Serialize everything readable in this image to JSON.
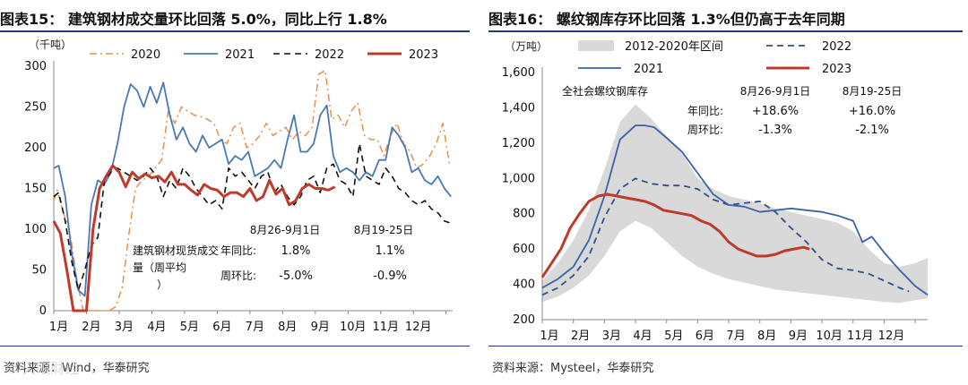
{
  "left": {
    "title": "图表15： 建筑钢材成交量环比回落 5.0%，同比上行 1.8%",
    "source": "资料来源：Wind，华泰研究",
    "chart_data": {
      "type": "line",
      "unit": "（千吨）",
      "ylim": [
        0,
        300
      ],
      "yticks": [
        0,
        50,
        100,
        150,
        200,
        250,
        300
      ],
      "xlim": [
        0,
        12.2
      ],
      "months": [
        "1月",
        "2月",
        "3月",
        "4月",
        "5月",
        "6月",
        "7月",
        "8月",
        "9月",
        "10月",
        "11月",
        "12月"
      ],
      "series": [
        {
          "name": "2020",
          "color": "#e8904a",
          "style": "dashdot",
          "width": 1.5,
          "x": [
            0,
            0.1,
            0.3,
            0.5,
            0.7,
            0.9,
            1.1,
            1.3,
            1.5,
            1.7,
            1.9,
            2.1,
            2.3,
            2.5,
            2.7,
            2.9,
            3.1,
            3.3,
            3.5,
            3.7,
            3.9,
            4.1,
            4.3,
            4.5,
            4.7,
            4.9,
            5.1,
            5.3,
            5.5,
            5.7,
            5.9,
            6.1,
            6.3,
            6.5,
            6.7,
            6.9,
            7.1,
            7.3,
            7.5,
            7.7,
            7.9,
            8.1,
            8.3,
            8.5,
            8.7,
            8.9,
            9.1,
            9.3,
            9.5,
            9.7,
            9.9,
            10.1,
            10.3,
            10.5,
            10.7,
            10.9,
            11.1,
            11.3,
            11.5,
            11.7,
            11.9,
            12.1
          ],
          "y": [
            135,
            148,
            120,
            95,
            40,
            0,
            0,
            0,
            0,
            0,
            5,
            30,
            95,
            150,
            160,
            165,
            175,
            185,
            245,
            230,
            250,
            245,
            240,
            238,
            235,
            230,
            210,
            205,
            225,
            230,
            200,
            205,
            215,
            230,
            215,
            220,
            225,
            210,
            220,
            215,
            225,
            290,
            295,
            235,
            240,
            225,
            245,
            255,
            215,
            210,
            210,
            190,
            215,
            230,
            205,
            195,
            175,
            180,
            190,
            205,
            230,
            180
          ]
        },
        {
          "name": "2021",
          "color": "#4a78b5",
          "style": "solid",
          "width": 1.8,
          "x": [
            0,
            0.15,
            0.35,
            0.55,
            0.75,
            0.95,
            1.15,
            1.35,
            1.55,
            1.75,
            1.95,
            2.15,
            2.35,
            2.55,
            2.75,
            2.95,
            3.15,
            3.35,
            3.55,
            3.75,
            3.95,
            4.15,
            4.35,
            4.55,
            4.75,
            4.95,
            5.15,
            5.35,
            5.55,
            5.75,
            5.95,
            6.15,
            6.35,
            6.55,
            6.75,
            6.95,
            7.15,
            7.35,
            7.55,
            7.75,
            7.95,
            8.15,
            8.35,
            8.55,
            8.75,
            8.95,
            9.15,
            9.35,
            9.55,
            9.75,
            9.95,
            10.15,
            10.35,
            10.55,
            10.75,
            10.95,
            11.15,
            11.35,
            11.55,
            11.75,
            11.95,
            12.15
          ],
          "y": [
            175,
            178,
            140,
            70,
            25,
            18,
            130,
            160,
            155,
            170,
            205,
            250,
            278,
            270,
            250,
            275,
            255,
            280,
            240,
            210,
            225,
            205,
            195,
            215,
            200,
            205,
            210,
            180,
            190,
            185,
            195,
            165,
            170,
            175,
            185,
            175,
            210,
            240,
            195,
            195,
            205,
            240,
            252,
            190,
            170,
            175,
            170,
            160,
            170,
            165,
            185,
            185,
            225,
            215,
            200,
            170,
            175,
            160,
            155,
            165,
            150,
            140
          ]
        },
        {
          "name": "2022",
          "color": "#111111",
          "style": "dashed",
          "width": 1.6,
          "x": [
            0,
            0.15,
            0.35,
            0.55,
            0.75,
            0.95,
            1.15,
            1.35,
            1.55,
            1.75,
            1.95,
            2.15,
            2.35,
            2.55,
            2.75,
            2.95,
            3.15,
            3.35,
            3.55,
            3.75,
            3.95,
            4.15,
            4.35,
            4.55,
            4.75,
            4.95,
            5.15,
            5.35,
            5.55,
            5.75,
            5.95,
            6.15,
            6.35,
            6.55,
            6.75,
            6.95,
            7.15,
            7.35,
            7.55,
            7.75,
            7.95,
            8.15,
            8.35,
            8.55,
            8.75,
            8.95,
            9.15,
            9.35,
            9.55,
            9.75,
            9.95,
            10.15,
            10.35,
            10.55,
            10.75,
            10.95,
            11.15,
            11.35,
            11.55,
            11.75,
            11.95,
            12.1
          ],
          "y": [
            140,
            145,
            110,
            60,
            25,
            50,
            80,
            90,
            160,
            170,
            175,
            170,
            165,
            160,
            165,
            175,
            165,
            140,
            160,
            150,
            175,
            165,
            150,
            140,
            130,
            135,
            125,
            175,
            165,
            170,
            160,
            150,
            165,
            170,
            145,
            155,
            140,
            130,
            140,
            160,
            165,
            145,
            175,
            180,
            160,
            155,
            140,
            205,
            165,
            160,
            155,
            175,
            165,
            150,
            145,
            135,
            130,
            135,
            125,
            120,
            110,
            108
          ]
        },
        {
          "name": "2023",
          "color": "#c0392b",
          "style": "solid",
          "width": 3.0,
          "x": [
            0,
            0.2,
            0.4,
            0.6,
            0.8,
            1.0,
            1.2,
            1.4,
            1.6,
            1.8,
            2.0,
            2.2,
            2.4,
            2.6,
            2.8,
            3.0,
            3.2,
            3.4,
            3.6,
            3.8,
            4.0,
            4.2,
            4.4,
            4.6,
            4.8,
            5.0,
            5.2,
            5.4,
            5.6,
            5.8,
            6.0,
            6.2,
            6.4,
            6.6,
            6.8,
            7.0,
            7.2,
            7.4,
            7.6,
            7.8,
            8.0,
            8.2,
            8.4,
            8.6
          ],
          "y": [
            110,
            95,
            50,
            0,
            0,
            0,
            100,
            150,
            165,
            178,
            170,
            152,
            170,
            162,
            168,
            163,
            165,
            158,
            170,
            155,
            155,
            148,
            142,
            155,
            150,
            148,
            140,
            145,
            145,
            140,
            150,
            135,
            140,
            160,
            143,
            150,
            130,
            135,
            150,
            155,
            150,
            150,
            148,
            152
          ]
        }
      ],
      "table": {
        "header": [
          "8月26-9月1日",
          "8月19-25日"
        ],
        "label": "建筑钢材现货成交量（周平均）",
        "rows": [
          {
            "name": "年同比:",
            "v1": "1.8%",
            "v2": "1.1%"
          },
          {
            "name": "周环比:",
            "v1": "-5.0%",
            "v2": "-0.9%"
          }
        ]
      }
    }
  },
  "right": {
    "title": "图表16： 螺纹钢库存环比回落 1.3%但仍高于去年同期",
    "source": "资料来源：Mysteel，华泰研究",
    "chart_data": {
      "type": "area",
      "unit": "（万吨）",
      "ylim": [
        200,
        1600
      ],
      "yticks": [
        200,
        400,
        600,
        800,
        1000,
        1200,
        1400,
        1600
      ],
      "yticklabels": [
        "200",
        "400",
        "600",
        "800",
        "1,000",
        "1,200",
        "1,400",
        "1,600"
      ],
      "xlim": [
        0,
        12.4
      ],
      "months": [
        "1月",
        "2月",
        "3月",
        "4月",
        "5月",
        "6月",
        "7月",
        "8月",
        "9月",
        "10月",
        "11月",
        "12月"
      ],
      "band": {
        "name": "2012-2020年区间",
        "color": "#d9d9d9",
        "x": [
          0,
          0.5,
          1.0,
          1.5,
          2.0,
          2.5,
          3.0,
          3.5,
          4.0,
          4.5,
          5.0,
          5.5,
          6.0,
          6.5,
          7.0,
          7.5,
          8.0,
          8.5,
          9.0,
          9.5,
          10.0,
          10.5,
          11.0,
          11.5,
          12.0,
          12.4
        ],
        "upper": [
          420,
          520,
          650,
          820,
          1050,
          1320,
          1420,
          1340,
          1240,
          1140,
          1000,
          940,
          900,
          880,
          860,
          830,
          810,
          790,
          770,
          750,
          700,
          600,
          520,
          500,
          520,
          550
        ],
        "lower": [
          300,
          330,
          380,
          450,
          560,
          700,
          760,
          720,
          640,
          560,
          500,
          460,
          430,
          410,
          390,
          370,
          360,
          350,
          340,
          330,
          320,
          310,
          300,
          295,
          310,
          320
        ]
      },
      "series": [
        {
          "name": "2022",
          "color": "#2f4f8a",
          "style": "dashed",
          "width": 1.8,
          "x": [
            0,
            0.5,
            1.0,
            1.5,
            2.0,
            2.5,
            3.0,
            3.5,
            4.0,
            4.5,
            5.0,
            5.5,
            6.0,
            6.5,
            7.0,
            7.5,
            8.0,
            8.5,
            9.0,
            9.5,
            10.0,
            10.5,
            11.0,
            11.5,
            11.8
          ],
          "y": [
            340,
            380,
            450,
            560,
            780,
            940,
            1000,
            970,
            960,
            960,
            940,
            880,
            850,
            860,
            870,
            810,
            720,
            640,
            540,
            490,
            480,
            460,
            420,
            380,
            360
          ]
        },
        {
          "name": "2021",
          "color": "#3a62a8",
          "style": "solid",
          "width": 1.8,
          "x": [
            0,
            0.5,
            1.0,
            1.5,
            2.0,
            2.5,
            3.0,
            3.3,
            3.6,
            4.0,
            4.5,
            5.0,
            5.5,
            6.0,
            6.5,
            7.0,
            7.5,
            8.0,
            8.5,
            9.0,
            9.5,
            10.0,
            10.3,
            10.6,
            11.0,
            11.5,
            12.0,
            12.4
          ],
          "y": [
            380,
            430,
            500,
            650,
            900,
            1220,
            1300,
            1300,
            1290,
            1230,
            1150,
            1030,
            910,
            850,
            840,
            810,
            820,
            830,
            820,
            810,
            790,
            760,
            640,
            670,
            580,
            480,
            390,
            340
          ]
        },
        {
          "name": "2023",
          "color": "#c0392b",
          "style": "solid",
          "width": 3.0,
          "x": [
            0,
            0.3,
            0.6,
            0.9,
            1.2,
            1.5,
            1.8,
            2.1,
            2.4,
            2.7,
            3.0,
            3.3,
            3.6,
            3.9,
            4.2,
            4.5,
            4.8,
            5.1,
            5.4,
            5.7,
            6.0,
            6.3,
            6.6,
            6.9,
            7.2,
            7.5,
            7.8,
            8.1,
            8.4,
            8.6
          ],
          "y": [
            440,
            520,
            600,
            720,
            800,
            870,
            900,
            910,
            900,
            890,
            880,
            870,
            850,
            820,
            810,
            800,
            790,
            760,
            740,
            700,
            640,
            600,
            580,
            560,
            560,
            570,
            590,
            600,
            610,
            600
          ]
        }
      ],
      "annotation_title": "全社会螺纹钢库存",
      "table": {
        "header": [
          "8月26-9月1日",
          "8月19-25日"
        ],
        "rows": [
          {
            "name": "年同比:",
            "v1": "+18.6%",
            "v2": "+16.0%"
          },
          {
            "name": "周环比:",
            "v1": "-1.3%",
            "v2": "-2.1%"
          }
        ]
      }
    }
  },
  "watermark": "© 火眼财经"
}
